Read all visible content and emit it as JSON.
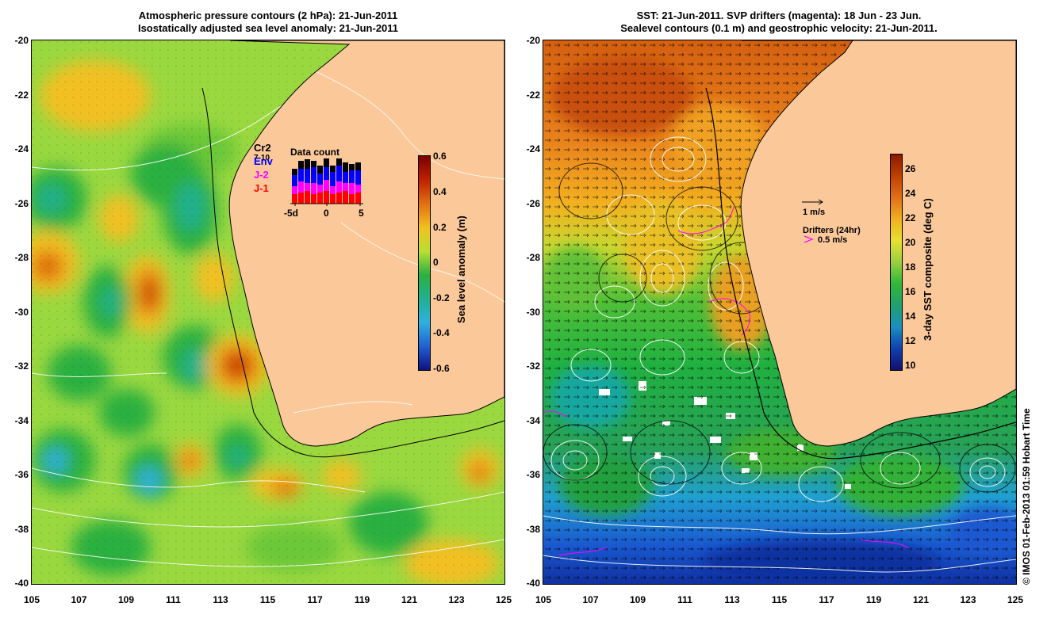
{
  "left": {
    "title_line1": "Atmospheric pressure contours (2 hPa): 21-Jun-2011",
    "title_line2": "Isostatically adjusted sea level anomaly: 21-Jun-2011",
    "colorbar_label": "Sea level anomaly (m)",
    "colorbar_ticks": [
      "0.6",
      "0.4",
      "0.2",
      "0",
      "-0.2",
      "-0.4",
      "-0.6"
    ],
    "colorbar_colors": [
      "#7a0000",
      "#c02000",
      "#e07010",
      "#f2c020",
      "#b8e030",
      "#2cb040",
      "#20b090",
      "#30b0e0",
      "#2060d0",
      "#101080"
    ],
    "data_count": {
      "title": "Data count",
      "satellites": [
        {
          "name": "Cr2",
          "color": "#000000"
        },
        {
          "name": "Env",
          "color": "#0000ff"
        },
        {
          "name": "J-2",
          "color": "#ff00ff"
        },
        {
          "name": "J-1",
          "color": "#ff0000"
        }
      ],
      "ticks": [
        "-5d",
        "0",
        "5"
      ],
      "extra": "7-10"
    }
  },
  "right": {
    "title_line1": "SST: 21-Jun-2011. SVP drifters (magenta): 18 Jun - 23 Jun.",
    "title_line2": "Sealevel contours (0.1 m) and geostrophic velocity: 21-Jun-2011.",
    "colorbar_label": "3-day SST composite (deg C)",
    "colorbar_ticks": [
      "26",
      "24",
      "22",
      "20",
      "18",
      "16",
      "14",
      "12",
      "10"
    ],
    "colorbar_colors": [
      "#8a1a00",
      "#c04000",
      "#e07018",
      "#f0b020",
      "#e8e030",
      "#98d040",
      "#30b838",
      "#20a070",
      "#1890c0",
      "#1040b0",
      "#101070"
    ],
    "velocity_scale": "1 m/s",
    "drifters_label": "Drifters (24hr)",
    "drifters_scale": "0.5 m/s"
  },
  "axes": {
    "y_ticks": [
      "-20",
      "-22",
      "-24",
      "-26",
      "-28",
      "-30",
      "-32",
      "-34",
      "-36",
      "-38",
      "-40"
    ],
    "x_ticks": [
      "105",
      "107",
      "109",
      "111",
      "113",
      "115",
      "117",
      "119",
      "121",
      "123",
      "125"
    ]
  },
  "credit": "© IMOS 01-Feb-2013 01:59 Hobart Time",
  "colors": {
    "land": "#fbc89a",
    "ocean_base_left": "#9ad840",
    "ocean_warm_right": "#e8801c",
    "ocean_cold_right": "#1a58d0"
  }
}
